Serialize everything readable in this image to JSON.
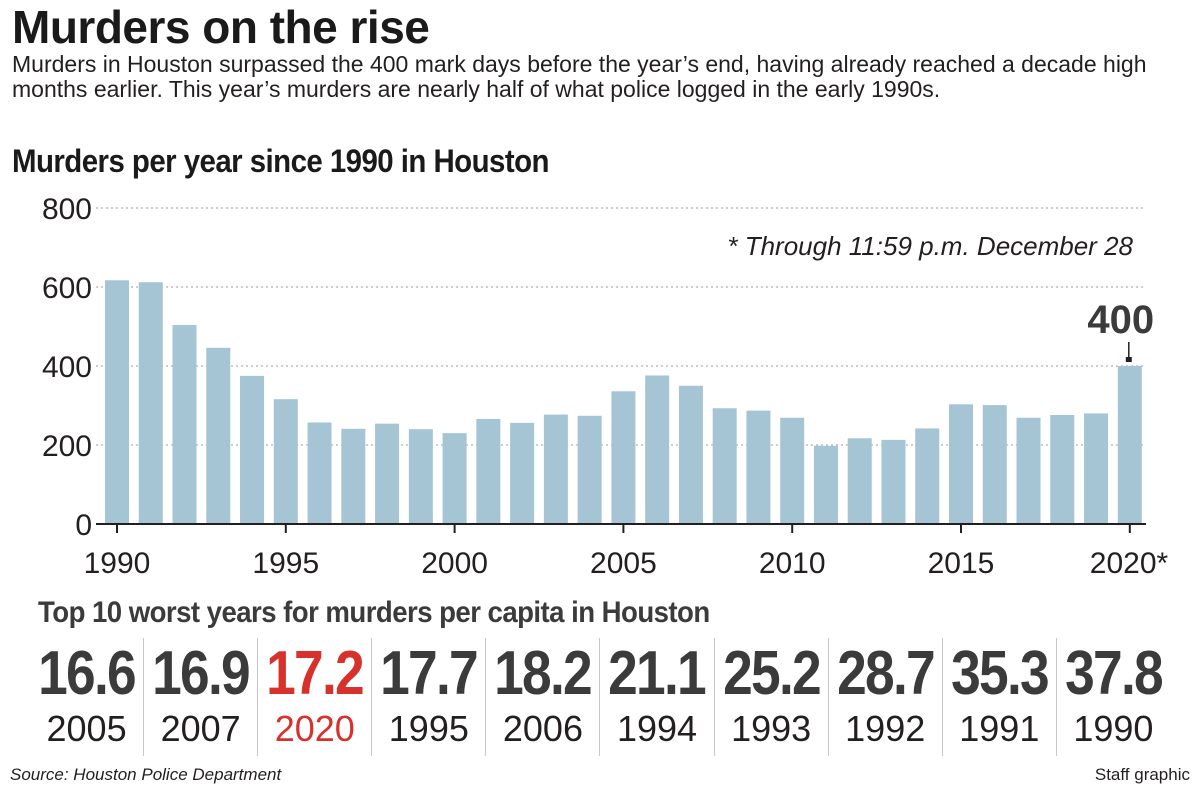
{
  "headline": "Murders on the rise",
  "dek": "Murders in Houston surpassed the 400 mark days before the year’s end, having already reached a decade high months earlier. This year’s murders are nearly half of what police logged in the early 1990s.",
  "colors": {
    "bar": "#a5c4d4",
    "highlight": "#d6312a",
    "text": "#231f20"
  },
  "chart_data": {
    "type": "bar",
    "title": "Murders per year since 1990 in Houston",
    "note": "* Through 11:59 p.m.  December 28",
    "callout": {
      "label": "400",
      "category": "2020"
    },
    "categories": [
      "1990",
      "1991",
      "1992",
      "1993",
      "1994",
      "1995",
      "1996",
      "1997",
      "1998",
      "1999",
      "2000",
      "2001",
      "2002",
      "2003",
      "2004",
      "2005",
      "2006",
      "2007",
      "2008",
      "2009",
      "2010",
      "2011",
      "2012",
      "2013",
      "2014",
      "2015",
      "2016",
      "2017",
      "2018",
      "2019",
      "2020"
    ],
    "values": [
      617,
      612,
      504,
      446,
      375,
      316,
      257,
      241,
      254,
      240,
      230,
      266,
      256,
      277,
      274,
      336,
      376,
      350,
      293,
      287,
      269,
      198,
      217,
      213,
      242,
      303,
      301,
      269,
      276,
      280,
      400
    ],
    "yticks": [
      "800",
      "600",
      "400",
      "200",
      "0"
    ],
    "xticks": [
      {
        "category": "1990",
        "label": "1990"
      },
      {
        "category": "1995",
        "label": "1995"
      },
      {
        "category": "2000",
        "label": "2000"
      },
      {
        "category": "2005",
        "label": "2005"
      },
      {
        "category": "2010",
        "label": "2010"
      },
      {
        "category": "2015",
        "label": "2015"
      },
      {
        "category": "2020",
        "label": "2020*"
      }
    ],
    "ylim": [
      0,
      800
    ],
    "grid": true,
    "xlabel": "",
    "ylabel": ""
  },
  "ranking": {
    "title": "Top 10 worst years for murders per capita in Houston",
    "items": [
      {
        "rate": "16.6",
        "year": "2005",
        "highlight": false
      },
      {
        "rate": "16.9",
        "year": "2007",
        "highlight": false
      },
      {
        "rate": "17.2",
        "year": "2020",
        "highlight": true
      },
      {
        "rate": "17.7",
        "year": "1995",
        "highlight": false
      },
      {
        "rate": "18.2",
        "year": "2006",
        "highlight": false
      },
      {
        "rate": "21.1",
        "year": "1994",
        "highlight": false
      },
      {
        "rate": "25.2",
        "year": "1993",
        "highlight": false
      },
      {
        "rate": "28.7",
        "year": "1992",
        "highlight": false
      },
      {
        "rate": "35.3",
        "year": "1991",
        "highlight": false
      },
      {
        "rate": "37.8",
        "year": "1990",
        "highlight": false
      }
    ]
  },
  "footer": {
    "source": "Source: Houston Police Department",
    "credit": "Staff graphic"
  }
}
